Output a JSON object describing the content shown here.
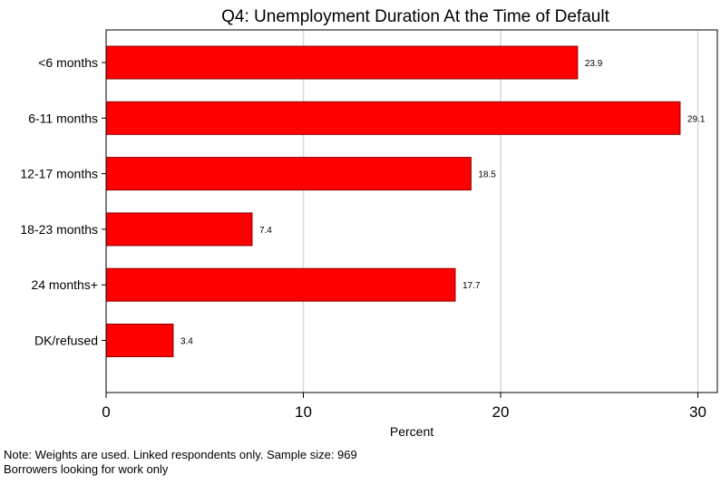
{
  "chart_data": {
    "type": "bar",
    "orientation": "horizontal",
    "title": "Q4: Unemployment Duration At the Time of Default",
    "xlabel": "Percent",
    "ylabel": "",
    "categories": [
      "<6 months",
      "6-11 months",
      "12-17 months",
      "18-23 months",
      "24 months+",
      "DK/refused"
    ],
    "values": [
      23.9,
      29.1,
      18.5,
      7.4,
      17.7,
      3.4
    ],
    "value_labels": [
      "23.9",
      "29.1",
      "18.5",
      "7.4",
      "17.7",
      "3.4"
    ],
    "xlim": [
      0,
      31
    ],
    "xticks": [
      0,
      10,
      20,
      30
    ],
    "xtick_labels": [
      "0",
      "10",
      "20",
      "30"
    ],
    "grid": "vertical",
    "bar_color": "#ff0000",
    "bar_edge_color": "#8b0000",
    "grid_color": "#d9d9d9"
  },
  "notes": [
    "Note: Weights are used. Linked respondents only. Sample size: 969",
    "Borrowers looking for work only"
  ]
}
